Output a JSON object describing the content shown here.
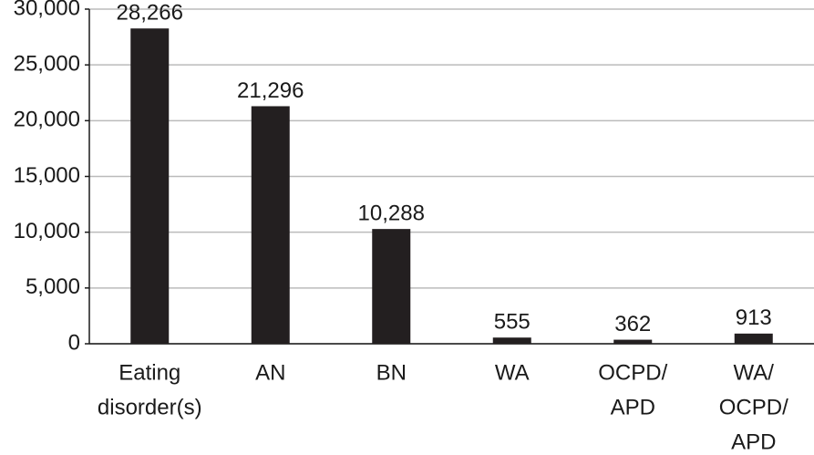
{
  "chart_data": {
    "type": "bar",
    "categories": [
      [
        "Eating",
        "disorder(s)"
      ],
      [
        "AN"
      ],
      [
        "BN"
      ],
      [
        "WA"
      ],
      [
        "OCPD/",
        "APD"
      ],
      [
        "WA/",
        "OCPD/",
        "APD"
      ]
    ],
    "values": [
      28266,
      21296,
      10288,
      555,
      362,
      913
    ],
    "value_labels": [
      "28,266",
      "21,296",
      "10,288",
      "555",
      "362",
      "913"
    ],
    "color": "#231f20",
    "ylim": [
      0,
      30000
    ],
    "yticks": [
      0,
      {
        "value": 5000,
        "label": "5,000"
      },
      {
        "value": 10000,
        "label": "10,000"
      },
      {
        "value": 15000,
        "label": "15,000"
      },
      {
        "value": 20000,
        "label": "20,000"
      },
      {
        "value": 25000,
        "label": "25,000"
      },
      {
        "value": 30000,
        "label": "30,000"
      }
    ],
    "grid": true
  }
}
